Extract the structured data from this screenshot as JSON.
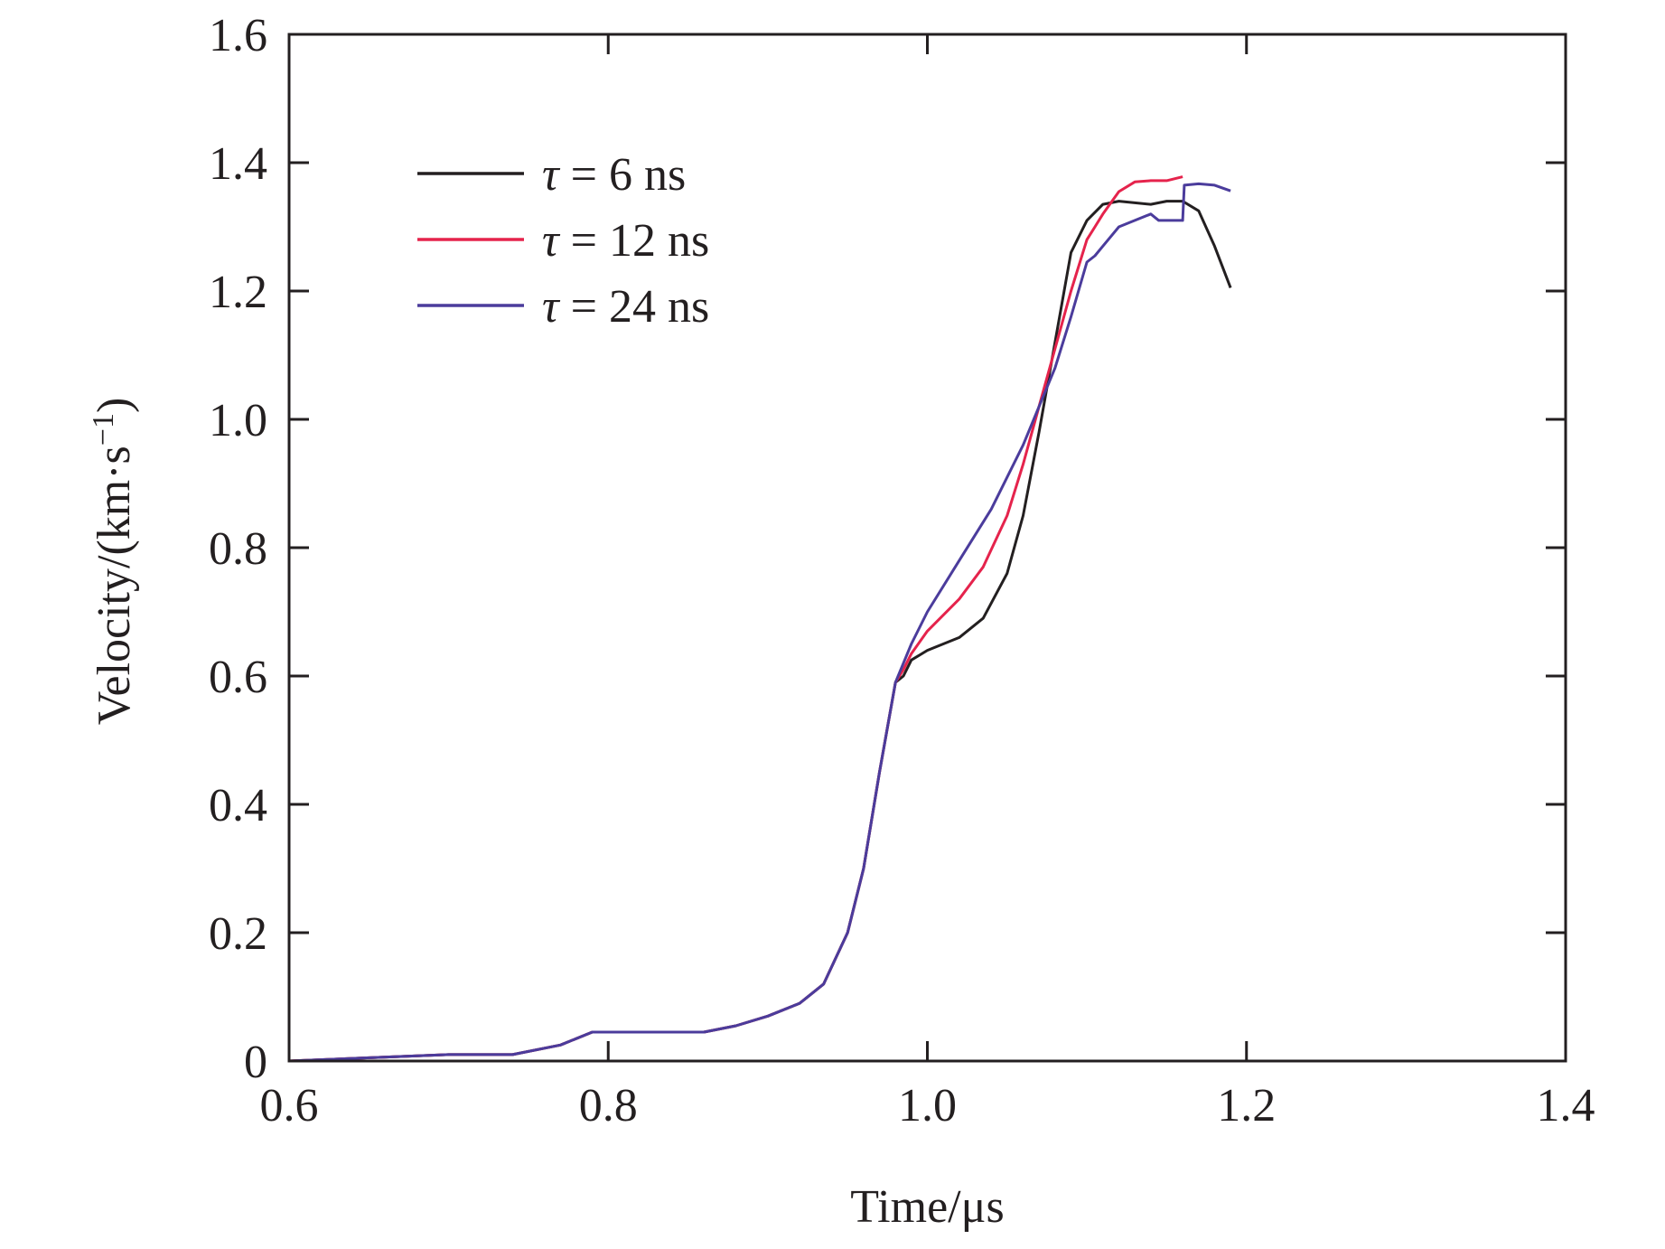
{
  "chart_data": {
    "type": "line",
    "xlabel": "Time/μs",
    "ylabel_main": "Velocity/(km·s",
    "ylabel_sup": "−1",
    "ylabel_close": ")",
    "xlim": [
      0.6,
      1.4
    ],
    "ylim": [
      0,
      1.6
    ],
    "xticks": [
      0.6,
      0.8,
      1.0,
      1.2,
      1.4
    ],
    "xtick_labels": [
      "0.6",
      "0.8",
      "1.0",
      "1.2",
      "1.4"
    ],
    "yticks": [
      0,
      0.2,
      0.4,
      0.6,
      0.8,
      1.0,
      1.2,
      1.4,
      1.6
    ],
    "ytick_labels": [
      "0",
      "0.2",
      "0.4",
      "0.6",
      "0.8",
      "1.0",
      "1.2",
      "1.4",
      "1.6"
    ],
    "grid": false,
    "legend_position": "top-left",
    "series": [
      {
        "legend_symbol": "τ",
        "legend_rest": " = 6 ns",
        "color": "#231f20",
        "x": [
          0.6,
          0.7,
          0.74,
          0.77,
          0.79,
          0.82,
          0.86,
          0.88,
          0.9,
          0.92,
          0.935,
          0.95,
          0.96,
          0.97,
          0.98,
          0.985,
          0.99,
          1.0,
          1.02,
          1.035,
          1.05,
          1.06,
          1.07,
          1.08,
          1.09,
          1.1,
          1.11,
          1.12,
          1.14,
          1.15,
          1.16,
          1.17,
          1.18,
          1.19
        ],
        "y": [
          0,
          0.01,
          0.01,
          0.025,
          0.045,
          0.045,
          0.045,
          0.055,
          0.07,
          0.09,
          0.12,
          0.2,
          0.3,
          0.45,
          0.59,
          0.6,
          0.625,
          0.64,
          0.66,
          0.69,
          0.76,
          0.85,
          0.98,
          1.12,
          1.26,
          1.31,
          1.335,
          1.34,
          1.335,
          1.34,
          1.34,
          1.325,
          1.27,
          1.205
        ]
      },
      {
        "legend_symbol": "τ",
        "legend_rest": " = 12 ns",
        "color": "#e5234c",
        "x": [
          0.6,
          0.7,
          0.74,
          0.77,
          0.79,
          0.82,
          0.86,
          0.88,
          0.9,
          0.92,
          0.935,
          0.95,
          0.96,
          0.97,
          0.98,
          0.985,
          0.99,
          1.0,
          1.02,
          1.035,
          1.05,
          1.06,
          1.07,
          1.08,
          1.09,
          1.1,
          1.105,
          1.11,
          1.12,
          1.13,
          1.14,
          1.15,
          1.16
        ],
        "y": [
          0,
          0.01,
          0.01,
          0.025,
          0.045,
          0.045,
          0.045,
          0.055,
          0.07,
          0.09,
          0.12,
          0.2,
          0.3,
          0.45,
          0.59,
          0.61,
          0.635,
          0.67,
          0.72,
          0.77,
          0.85,
          0.93,
          1.02,
          1.11,
          1.2,
          1.28,
          1.3,
          1.32,
          1.355,
          1.37,
          1.372,
          1.372,
          1.378
        ]
      },
      {
        "legend_symbol": "τ",
        "legend_rest": " = 24 ns",
        "color": "#4b3c9c",
        "x": [
          0.6,
          0.7,
          0.74,
          0.77,
          0.79,
          0.82,
          0.86,
          0.88,
          0.9,
          0.92,
          0.935,
          0.95,
          0.96,
          0.97,
          0.98,
          0.985,
          0.99,
          1.0,
          1.02,
          1.04,
          1.06,
          1.08,
          1.09,
          1.1,
          1.105,
          1.11,
          1.12,
          1.13,
          1.14,
          1.145,
          1.15,
          1.16,
          1.161,
          1.17,
          1.18,
          1.19
        ],
        "y": [
          0,
          0.01,
          0.01,
          0.025,
          0.045,
          0.045,
          0.045,
          0.055,
          0.07,
          0.09,
          0.12,
          0.2,
          0.3,
          0.45,
          0.59,
          0.62,
          0.65,
          0.7,
          0.78,
          0.86,
          0.96,
          1.08,
          1.16,
          1.245,
          1.255,
          1.27,
          1.3,
          1.31,
          1.32,
          1.31,
          1.31,
          1.31,
          1.365,
          1.367,
          1.365,
          1.356
        ]
      }
    ]
  }
}
